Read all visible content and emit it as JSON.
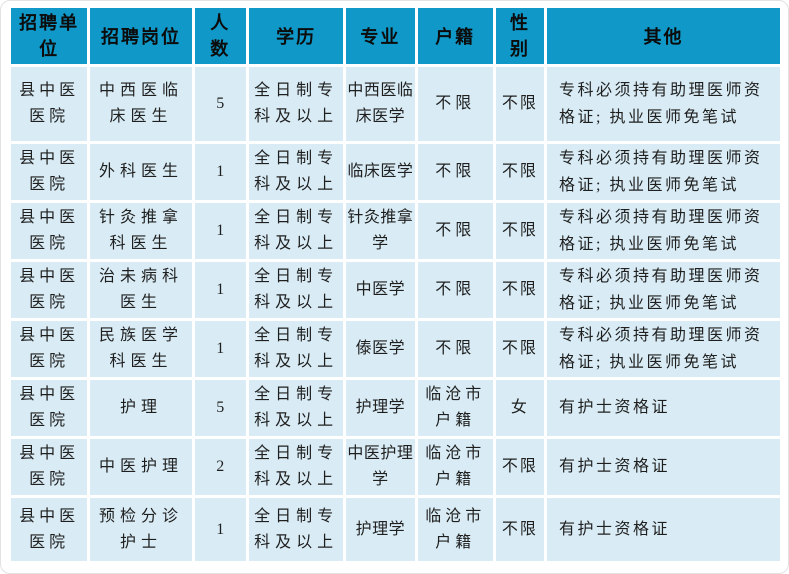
{
  "table": {
    "headers": [
      "招聘单位",
      "招聘岗位",
      "人数",
      "学历",
      "专业",
      "户籍",
      "性别",
      "其他"
    ],
    "rows": [
      [
        "县中医医院",
        "中西医临床医生",
        "5",
        "全日制专科及以上",
        "中西医临床医学",
        "不限",
        "不限",
        "专科必须持有助理医师资格证; 执业医师免笔试"
      ],
      [
        "县中医医院",
        "外科医生",
        "1",
        "全日制专科及以上",
        "临床医学",
        "不限",
        "不限",
        "专科必须持有助理医师资格证; 执业医师免笔试"
      ],
      [
        "县中医医院",
        "针灸推拿科医生",
        "1",
        "全日制专科及以上",
        "针灸推拿学",
        "不限",
        "不限",
        "专科必须持有助理医师资格证; 执业医师免笔试"
      ],
      [
        "县中医医院",
        "治未病科医生",
        "1",
        "全日制专科及以上",
        "中医学",
        "不限",
        "不限",
        "专科必须持有助理医师资格证; 执业医师免笔试"
      ],
      [
        "县中医医院",
        "民族医学科医生",
        "1",
        "全日制专科及以上",
        "傣医学",
        "不限",
        "不限",
        "专科必须持有助理医师资格证; 执业医师免笔试"
      ],
      [
        "县中医医院",
        "护理",
        "5",
        "全日制专科及以上",
        "护理学",
        "临沧市户籍",
        "女",
        "有护士资格证"
      ],
      [
        "县中医医院",
        "中医护理",
        "2",
        "全日制专科及以上",
        "中医护理学",
        "临沧市户籍",
        "不限",
        "有护士资格证"
      ],
      [
        "县中医医院",
        "预检分诊护士",
        "1",
        "全日制专科及以上",
        "护理学",
        "临沧市户籍",
        "不限",
        "有护士资格证"
      ]
    ],
    "colors": {
      "header_bg": "#0f98c8",
      "row_bg": "#d9ecf5",
      "gridline": "#ffffff",
      "text": "#1f1f1f"
    }
  }
}
